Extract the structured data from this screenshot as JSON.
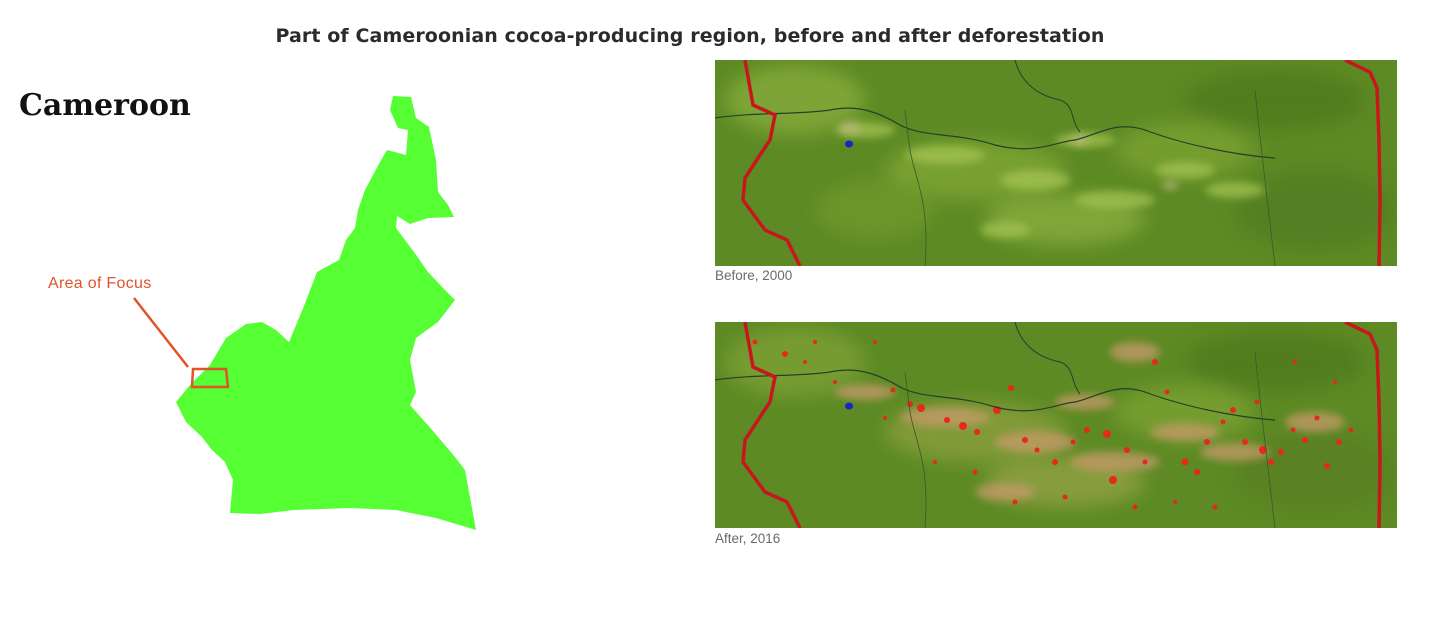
{
  "figure": {
    "title": "Part of Cameroonian cocoa-producing region, before and after deforestation"
  },
  "country_map": {
    "country_name": "Cameroon",
    "focus_label": "Area of Focus",
    "land_color": "#55ff33",
    "focus_color": "#e0532b"
  },
  "panels": [
    {
      "caption": "Before, 2000",
      "loss_shown": false
    },
    {
      "caption": "After, 2016",
      "loss_shown": true
    }
  ],
  "legend_colors": {
    "forest": "#5b8a22",
    "border": "#c8161d",
    "forest_loss": "#e8281c",
    "water": "#1428c8"
  }
}
